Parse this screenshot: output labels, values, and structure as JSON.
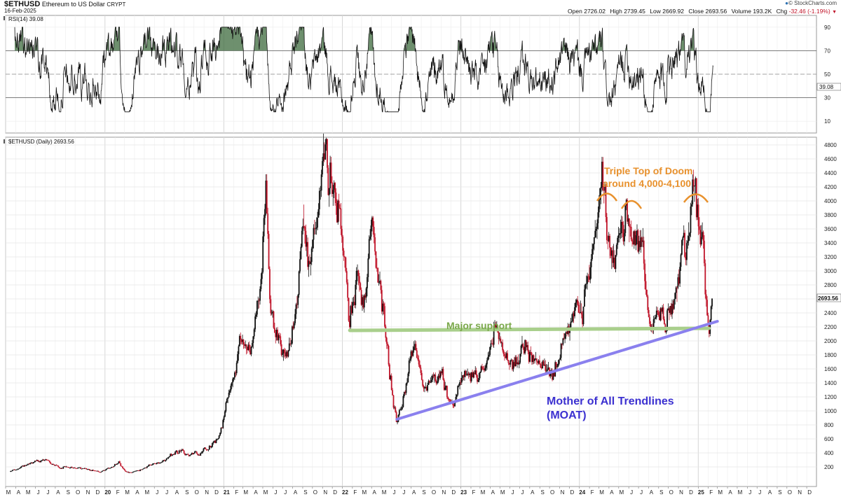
{
  "header": {
    "symbol": "$ETHUSD",
    "name": "Ethereum to US Dollar",
    "exchange": "CRYPT",
    "date": "16-Feb-2025",
    "copyright": "© StockCharts.com",
    "ohlc": {
      "open_label": "Open",
      "open": "2726.02",
      "high_label": "High",
      "high": "2739.45",
      "low_label": "Low",
      "low": "2669.92",
      "close_label": "Close",
      "close": "2693.56",
      "volume_label": "Volume",
      "volume": "193.2K",
      "chg_label": "Chg",
      "chg": "-32.46 (-1.19%)"
    },
    "colors": {
      "chg_negative": "#c0152a"
    }
  },
  "chart_data": [
    {
      "type": "line",
      "panel": "rsi",
      "legend": "RSI(14) 39.08",
      "last_value": "39.08",
      "ylim": [
        0,
        100
      ],
      "y_ticks": [
        10,
        30,
        50,
        70,
        90
      ],
      "reference_lines": [
        30,
        50,
        70
      ],
      "shading": "above 70 filled dark green",
      "approx_range": [
        20,
        90
      ]
    },
    {
      "type": "candlestick",
      "panel": "price",
      "legend": "$ETHUSD (Daily) 2693.56",
      "last_value": "2693.56",
      "y_scale": "linear",
      "ylim": [
        0,
        4900
      ],
      "y_ticks": [
        200,
        400,
        600,
        800,
        1000,
        1200,
        1400,
        1600,
        1800,
        2000,
        2200,
        2400,
        2600,
        2800,
        3000,
        3200,
        3400,
        3600,
        3800,
        4000,
        4200,
        4400,
        4600,
        4800
      ],
      "x_range": [
        "2019-03",
        "2025-12"
      ],
      "x_ticks": [
        "M",
        "A",
        "M",
        "J",
        "J",
        "A",
        "S",
        "O",
        "N",
        "D",
        "20",
        "F",
        "M",
        "A",
        "M",
        "J",
        "J",
        "A",
        "S",
        "O",
        "N",
        "D",
        "21",
        "F",
        "M",
        "A",
        "M",
        "J",
        "J",
        "A",
        "S",
        "O",
        "N",
        "D",
        "22",
        "F",
        "M",
        "A",
        "M",
        "J",
        "J",
        "A",
        "S",
        "O",
        "N",
        "D",
        "23",
        "F",
        "M",
        "A",
        "M",
        "J",
        "J",
        "A",
        "S",
        "O",
        "N",
        "D",
        "24",
        "F",
        "M",
        "A",
        "M",
        "J",
        "J",
        "A",
        "S",
        "O",
        "N",
        "D",
        "25",
        "F",
        "M",
        "A",
        "M",
        "J",
        "J",
        "A",
        "S",
        "O",
        "N",
        "D"
      ],
      "approx_price_path": [
        [
          "2019-03-15",
          130
        ],
        [
          "2019-05-15",
          250
        ],
        [
          "2019-06-25",
          320
        ],
        [
          "2019-08-15",
          200
        ],
        [
          "2019-11-01",
          180
        ],
        [
          "2019-12-20",
          130
        ],
        [
          "2020-02-15",
          270
        ],
        [
          "2020-03-15",
          110
        ],
        [
          "2020-05-15",
          210
        ],
        [
          "2020-08-15",
          430
        ],
        [
          "2020-10-15",
          380
        ],
        [
          "2020-12-15",
          600
        ],
        [
          "2021-01-15",
          1200
        ],
        [
          "2021-02-20",
          1900
        ],
        [
          "2021-04-01",
          1800
        ],
        [
          "2021-05-12",
          4300
        ],
        [
          "2021-05-25",
          2500
        ],
        [
          "2021-06-25",
          1800
        ],
        [
          "2021-07-20",
          1800
        ],
        [
          "2021-09-05",
          3900
        ],
        [
          "2021-09-25",
          3000
        ],
        [
          "2021-11-10",
          4800
        ],
        [
          "2021-12-15",
          3900
        ],
        [
          "2022-01-10",
          3200
        ],
        [
          "2022-01-24",
          2300
        ],
        [
          "2022-02-15",
          3000
        ],
        [
          "2022-03-05",
          2600
        ],
        [
          "2022-04-02",
          3500
        ],
        [
          "2022-05-01",
          2800
        ],
        [
          "2022-05-20",
          2000
        ],
        [
          "2022-06-18",
          900
        ],
        [
          "2022-08-12",
          2000
        ],
        [
          "2022-09-20",
          1300
        ],
        [
          "2022-11-05",
          1600
        ],
        [
          "2022-12-01",
          1100
        ],
        [
          "2023-01-15",
          1550
        ],
        [
          "2023-03-10",
          1450
        ],
        [
          "2023-04-15",
          2100
        ],
        [
          "2023-06-15",
          1650
        ],
        [
          "2023-07-15",
          1950
        ],
        [
          "2023-08-30",
          1650
        ],
        [
          "2023-10-15",
          1550
        ],
        [
          "2023-12-10",
          2300
        ],
        [
          "2024-01-15",
          2500
        ],
        [
          "2024-03-12",
          4100
        ],
        [
          "2024-04-15",
          3000
        ],
        [
          "2024-05-28",
          3900
        ],
        [
          "2024-07-15",
          3400
        ],
        [
          "2024-08-05",
          2200
        ],
        [
          "2024-09-10",
          2300
        ],
        [
          "2024-10-15",
          2600
        ],
        [
          "2024-11-10",
          3100
        ],
        [
          "2024-12-16",
          4100
        ],
        [
          "2025-01-05",
          3600
        ],
        [
          "2025-01-20",
          3300
        ],
        [
          "2025-02-03",
          2200
        ],
        [
          "2025-02-16",
          2693.56
        ]
      ],
      "annotations": [
        {
          "text": "Triple Top of Doom",
          "color": "#e8912d"
        },
        {
          "text": "around 4,000-4,100",
          "color": "#e8912d"
        },
        {
          "text": "Major support",
          "color": "#7aa84a",
          "level": 2170
        },
        {
          "text": "Mother of All Trendlines",
          "color": "#3b30d0"
        },
        {
          "text": "(MOAT)",
          "color": "#3b30d0"
        }
      ],
      "trendlines": [
        {
          "name": "major-support",
          "color": "#a9cf8c",
          "from": [
            "2022-01-24",
            2150
          ],
          "to": [
            "2025-02-03",
            2180
          ]
        },
        {
          "name": "moat",
          "color": "#8a80ee",
          "from": [
            "2022-06-18",
            880
          ],
          "to": [
            "2025-03-01",
            2280
          ]
        }
      ]
    }
  ]
}
